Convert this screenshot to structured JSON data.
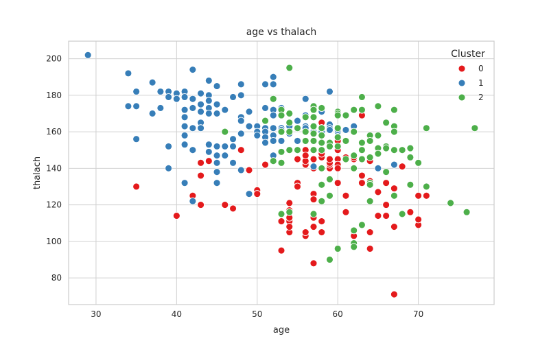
{
  "chart_data": {
    "type": "scatter",
    "title": "age vs thalach",
    "xlabel": "age",
    "ylabel": "thalach",
    "xlim": [
      26.6,
      79.4
    ],
    "ylim": [
      65.4,
      209.6
    ],
    "xticks": [
      30,
      40,
      50,
      60,
      70
    ],
    "yticks": [
      80,
      100,
      120,
      140,
      160,
      180,
      200
    ],
    "grid": true,
    "legend": {
      "title": "Cluster",
      "placement": "top-right"
    },
    "series": [
      {
        "name": "0",
        "color": "#e41a1c",
        "points": [
          [
            35,
            130
          ],
          [
            40,
            114
          ],
          [
            42,
            125
          ],
          [
            43,
            136
          ],
          [
            43,
            143
          ],
          [
            43,
            120
          ],
          [
            44,
            144
          ],
          [
            45,
            147
          ],
          [
            46,
            120
          ],
          [
            47,
            118
          ],
          [
            48,
            150
          ],
          [
            49,
            139
          ],
          [
            50,
            128
          ],
          [
            50,
            126
          ],
          [
            51,
            142
          ],
          [
            53,
            95
          ],
          [
            53,
            111
          ],
          [
            53,
            115
          ],
          [
            53,
            155
          ],
          [
            54,
            105
          ],
          [
            54,
            111
          ],
          [
            54,
            113
          ],
          [
            54,
            117
          ],
          [
            54,
            108
          ],
          [
            54,
            121
          ],
          [
            55,
            145
          ],
          [
            55,
            132
          ],
          [
            55,
            130
          ],
          [
            56,
            142
          ],
          [
            56,
            150
          ],
          [
            56,
            103
          ],
          [
            56,
            105
          ],
          [
            56,
            144
          ],
          [
            56,
            147
          ],
          [
            57,
            88
          ],
          [
            57,
            126
          ],
          [
            57,
            123
          ],
          [
            57,
            113
          ],
          [
            57,
            140
          ],
          [
            57,
            145
          ],
          [
            57,
            150
          ],
          [
            57,
            108
          ],
          [
            58,
            146
          ],
          [
            58,
            165
          ],
          [
            58,
            162
          ],
          [
            58,
            111
          ],
          [
            58,
            105
          ],
          [
            58,
            140
          ],
          [
            58,
            148
          ],
          [
            59,
            140
          ],
          [
            59,
            142
          ],
          [
            59,
            143
          ],
          [
            59,
            145
          ],
          [
            59,
            161
          ],
          [
            60,
            132
          ],
          [
            60,
            145
          ],
          [
            60,
            142
          ],
          [
            60,
            140
          ],
          [
            60,
            155
          ],
          [
            60,
            150
          ],
          [
            61,
            125
          ],
          [
            61,
            145
          ],
          [
            61,
            146
          ],
          [
            61,
            116
          ],
          [
            62,
            97
          ],
          [
            62,
            103
          ],
          [
            62,
            160
          ],
          [
            62,
            145
          ],
          [
            62,
            146
          ],
          [
            63,
            136
          ],
          [
            63,
            132
          ],
          [
            63,
            169
          ],
          [
            63,
            154
          ],
          [
            64,
            105
          ],
          [
            64,
            96
          ],
          [
            64,
            144
          ],
          [
            64,
            133
          ],
          [
            65,
            127
          ],
          [
            65,
            114
          ],
          [
            66,
            132
          ],
          [
            66,
            114
          ],
          [
            66,
            120
          ],
          [
            67,
            108
          ],
          [
            67,
            71
          ],
          [
            67,
            125
          ],
          [
            67,
            129
          ],
          [
            68,
            141
          ],
          [
            69,
            116
          ],
          [
            70,
            109
          ],
          [
            70,
            125
          ],
          [
            70,
            112
          ],
          [
            71,
            125
          ]
        ]
      },
      {
        "name": "1",
        "color": "#377eb8",
        "points": [
          [
            29,
            202
          ],
          [
            34,
            174
          ],
          [
            34,
            192
          ],
          [
            35,
            182
          ],
          [
            35,
            174
          ],
          [
            35,
            156
          ],
          [
            37,
            170
          ],
          [
            37,
            187
          ],
          [
            38,
            173
          ],
          [
            38,
            182
          ],
          [
            39,
            182
          ],
          [
            39,
            179
          ],
          [
            39,
            140
          ],
          [
            39,
            152
          ],
          [
            40,
            181
          ],
          [
            40,
            178
          ],
          [
            41,
            182
          ],
          [
            41,
            179
          ],
          [
            41,
            172
          ],
          [
            41,
            168
          ],
          [
            41,
            163
          ],
          [
            41,
            158
          ],
          [
            41,
            153
          ],
          [
            41,
            132
          ],
          [
            42,
            194
          ],
          [
            42,
            178
          ],
          [
            42,
            173
          ],
          [
            42,
            162
          ],
          [
            42,
            150
          ],
          [
            42,
            122
          ],
          [
            43,
            181
          ],
          [
            43,
            175
          ],
          [
            43,
            171
          ],
          [
            43,
            165
          ],
          [
            43,
            162
          ],
          [
            44,
            188
          ],
          [
            44,
            180
          ],
          [
            44,
            177
          ],
          [
            44,
            173
          ],
          [
            44,
            170
          ],
          [
            44,
            153
          ],
          [
            44,
            149
          ],
          [
            45,
            185
          ],
          [
            45,
            175
          ],
          [
            45,
            170
          ],
          [
            45,
            152
          ],
          [
            45,
            147
          ],
          [
            45,
            143
          ],
          [
            45,
            138
          ],
          [
            45,
            132
          ],
          [
            46,
            172
          ],
          [
            46,
            152
          ],
          [
            46,
            147
          ],
          [
            47,
            179
          ],
          [
            47,
            156
          ],
          [
            47,
            152
          ],
          [
            47,
            143
          ],
          [
            48,
            186
          ],
          [
            48,
            180
          ],
          [
            48,
            168
          ],
          [
            48,
            166
          ],
          [
            48,
            159
          ],
          [
            48,
            139
          ],
          [
            49,
            171
          ],
          [
            49,
            163
          ],
          [
            49,
            126
          ],
          [
            50,
            163
          ],
          [
            50,
            160
          ],
          [
            50,
            158
          ],
          [
            51,
            186
          ],
          [
            51,
            173
          ],
          [
            51,
            162
          ],
          [
            51,
            160
          ],
          [
            51,
            157
          ],
          [
            51,
            154
          ],
          [
            52,
            190
          ],
          [
            52,
            186
          ],
          [
            52,
            172
          ],
          [
            52,
            169
          ],
          [
            52,
            162
          ],
          [
            52,
            158
          ],
          [
            52,
            155
          ],
          [
            52,
            147
          ],
          [
            53,
            173
          ],
          [
            53,
            162
          ],
          [
            53,
            161
          ],
          [
            53,
            155
          ],
          [
            54,
            163
          ],
          [
            54,
            160
          ],
          [
            54,
            159
          ],
          [
            55,
            166
          ],
          [
            55,
            155
          ],
          [
            56,
            178
          ],
          [
            56,
            163
          ],
          [
            56,
            162
          ],
          [
            56,
            169
          ],
          [
            57,
            163
          ],
          [
            57,
            160
          ],
          [
            57,
            141
          ],
          [
            58,
            160
          ],
          [
            58,
            171
          ],
          [
            58,
            154
          ],
          [
            58,
            162
          ],
          [
            59,
            182
          ],
          [
            59,
            164
          ],
          [
            59,
            162
          ],
          [
            59,
            161
          ],
          [
            60,
            171
          ],
          [
            60,
            160
          ],
          [
            60,
            161
          ],
          [
            61,
            161
          ],
          [
            62,
            163
          ],
          [
            64,
            158
          ],
          [
            65,
            140
          ],
          [
            67,
            142
          ]
        ]
      },
      {
        "name": "2",
        "color": "#4daf4a",
        "points": [
          [
            46,
            160
          ],
          [
            51,
            166
          ],
          [
            52,
            178
          ],
          [
            52,
            144
          ],
          [
            53,
            172
          ],
          [
            53,
            169
          ],
          [
            53,
            160
          ],
          [
            53,
            149
          ],
          [
            53,
            143
          ],
          [
            53,
            115
          ],
          [
            54,
            195
          ],
          [
            54,
            170
          ],
          [
            54,
            165
          ],
          [
            54,
            160
          ],
          [
            54,
            150
          ],
          [
            54,
            116
          ],
          [
            55,
            162
          ],
          [
            55,
            150
          ],
          [
            56,
            168
          ],
          [
            56,
            160
          ],
          [
            56,
            155
          ],
          [
            57,
            174
          ],
          [
            57,
            172
          ],
          [
            57,
            168
          ],
          [
            57,
            163
          ],
          [
            57,
            159
          ],
          [
            57,
            155
          ],
          [
            57,
            150
          ],
          [
            57,
            115
          ],
          [
            58,
            173
          ],
          [
            58,
            162
          ],
          [
            58,
            158
          ],
          [
            58,
            154
          ],
          [
            58,
            150
          ],
          [
            58,
            140
          ],
          [
            58,
            131
          ],
          [
            58,
            122
          ],
          [
            59,
            154
          ],
          [
            59,
            152
          ],
          [
            59,
            134
          ],
          [
            59,
            125
          ],
          [
            59,
            90
          ],
          [
            60,
            171
          ],
          [
            60,
            170
          ],
          [
            60,
            169
          ],
          [
            60,
            162
          ],
          [
            60,
            157
          ],
          [
            60,
            152
          ],
          [
            60,
            96
          ],
          [
            61,
            169
          ],
          [
            61,
            155
          ],
          [
            61,
            145
          ],
          [
            62,
            172
          ],
          [
            62,
            160
          ],
          [
            62,
            147
          ],
          [
            62,
            140
          ],
          [
            62,
            106
          ],
          [
            62,
            99
          ],
          [
            62,
            97
          ],
          [
            63,
            179
          ],
          [
            63,
            172
          ],
          [
            63,
            154
          ],
          [
            63,
            150
          ],
          [
            63,
            145
          ],
          [
            63,
            109
          ],
          [
            64,
            158
          ],
          [
            64,
            155
          ],
          [
            64,
            146
          ],
          [
            64,
            132
          ],
          [
            64,
            131
          ],
          [
            64,
            122
          ],
          [
            65,
            174
          ],
          [
            65,
            158
          ],
          [
            65,
            151
          ],
          [
            65,
            148
          ],
          [
            66,
            165
          ],
          [
            66,
            152
          ],
          [
            66,
            151
          ],
          [
            66,
            138
          ],
          [
            67,
            172
          ],
          [
            67,
            163
          ],
          [
            67,
            160
          ],
          [
            67,
            150
          ],
          [
            67,
            125
          ],
          [
            68,
            150
          ],
          [
            68,
            115
          ],
          [
            69,
            151
          ],
          [
            69,
            146
          ],
          [
            69,
            131
          ],
          [
            70,
            143
          ],
          [
            71,
            162
          ],
          [
            71,
            130
          ],
          [
            74,
            121
          ],
          [
            76,
            116
          ],
          [
            77,
            162
          ]
        ]
      }
    ]
  }
}
